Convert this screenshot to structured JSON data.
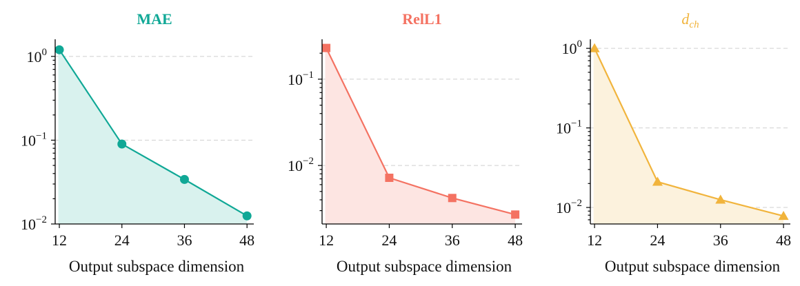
{
  "chart_data": [
    {
      "type": "line",
      "title": "MAE",
      "title_color": "#10a896",
      "fill_color": "#d9f2ee",
      "marker": "circle",
      "xlabel": "Output subspace dimension",
      "ylabel": "",
      "yscale": "log",
      "ylim": [
        0.01,
        1.6
      ],
      "xticks": [
        12,
        24,
        36,
        48
      ],
      "x_tick_labels": [
        "12",
        "24",
        "36",
        "48"
      ],
      "y_tick_labels": [
        {
          "value": 1,
          "base": "10",
          "exp": "0"
        },
        {
          "value": 0.1,
          "base": "10",
          "exp": "−1"
        },
        {
          "value": 0.01,
          "base": "10",
          "exp": "−2"
        }
      ],
      "grid": "y-dashed",
      "x": [
        12,
        24,
        36,
        48
      ],
      "values": [
        1.2,
        0.09,
        0.034,
        0.0125
      ]
    },
    {
      "type": "line",
      "title": "RelL1",
      "title_color": "#f47262",
      "fill_color": "#fde5e2",
      "marker": "square",
      "xlabel": "Output subspace dimension",
      "ylabel": "",
      "yscale": "log",
      "ylim": [
        0.0021,
        0.29
      ],
      "xticks": [
        12,
        24,
        36,
        48
      ],
      "x_tick_labels": [
        "12",
        "24",
        "36",
        "48"
      ],
      "y_tick_labels": [
        {
          "value": 0.1,
          "base": "10",
          "exp": "−1"
        },
        {
          "value": 0.01,
          "base": "10",
          "exp": "−2"
        }
      ],
      "grid": "y-dashed",
      "x": [
        12,
        24,
        36,
        48
      ],
      "values": [
        0.23,
        0.0072,
        0.0042,
        0.0027
      ]
    },
    {
      "type": "line",
      "title": "d",
      "title_sub": "ch",
      "title_color": "#f1b43c",
      "fill_color": "#fcf2dd",
      "marker": "triangle",
      "xlabel": "Output subspace dimension",
      "ylabel": "",
      "yscale": "log",
      "ylim": [
        0.0062,
        1.3
      ],
      "xticks": [
        12,
        24,
        36,
        48
      ],
      "x_tick_labels": [
        "12",
        "24",
        "36",
        "48"
      ],
      "y_tick_labels": [
        {
          "value": 1,
          "base": "10",
          "exp": "0"
        },
        {
          "value": 0.1,
          "base": "10",
          "exp": "−1"
        },
        {
          "value": 0.01,
          "base": "10",
          "exp": "−2"
        }
      ],
      "grid": "y-dashed",
      "x": [
        12,
        24,
        36,
        48
      ],
      "values": [
        1.0,
        0.021,
        0.0125,
        0.0078
      ]
    }
  ]
}
